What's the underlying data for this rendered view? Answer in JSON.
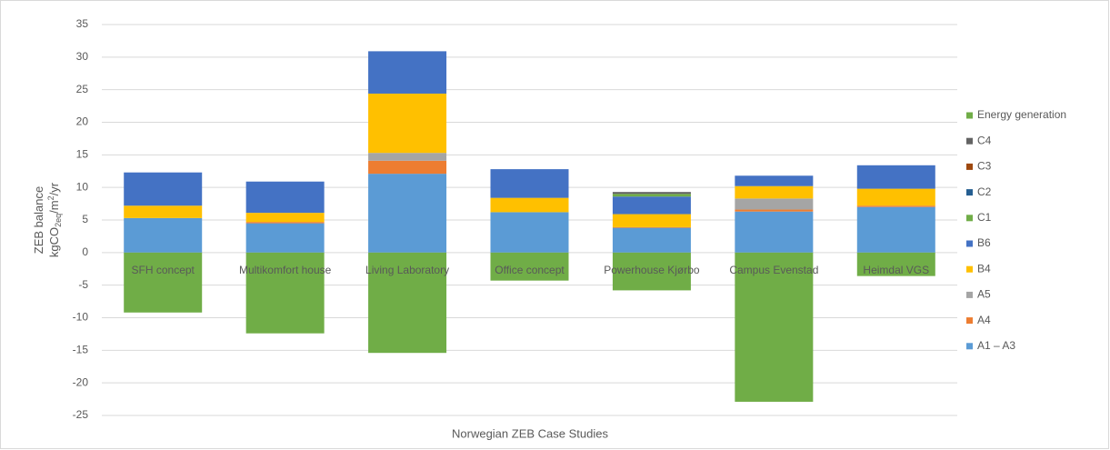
{
  "chart_data": {
    "type": "stacked_bar",
    "x_label": "Norwegian ZEB Case Studies",
    "y_label": [
      "ZEB balance",
      [
        "kgCO",
        "2eq",
        "/m",
        "2",
        "/yr"
      ]
    ],
    "categories": [
      "SFH concept",
      "Multikomfort house",
      "Living Laboratory",
      "Office concept",
      "Powerhouse Kjørbo",
      "Campus Evenstad",
      "Heimdal VGS"
    ],
    "series": [
      {
        "name": "A1 – A3",
        "color": "#5b9bd5",
        "values": [
          5.3,
          4.5,
          12.1,
          6.2,
          3.8,
          6.3,
          7.0
        ]
      },
      {
        "name": "A4",
        "color": "#ed7d31",
        "values": [
          0,
          0.2,
          2.0,
          0,
          0.1,
          0.3,
          0.2
        ]
      },
      {
        "name": "A5",
        "color": "#a5a5a5",
        "values": [
          0,
          0,
          1.2,
          0,
          0,
          1.7,
          0
        ]
      },
      {
        "name": "B4",
        "color": "#ffc000",
        "values": [
          1.9,
          1.4,
          9.1,
          2.2,
          2.0,
          1.9,
          2.6
        ]
      },
      {
        "name": "B6",
        "color": "#4472c4",
        "values": [
          5.1,
          4.8,
          6.5,
          4.4,
          2.7,
          1.6,
          3.6
        ]
      },
      {
        "name": "C1",
        "color": "#70ad47",
        "values": [
          0,
          0,
          0,
          0,
          0.4,
          0,
          0
        ]
      },
      {
        "name": "C2",
        "color": "#255e91",
        "values": [
          0,
          0,
          0,
          0,
          0,
          0,
          0
        ]
      },
      {
        "name": "C3",
        "color": "#9e480e",
        "values": [
          0,
          0,
          0,
          0,
          0,
          0,
          0
        ]
      },
      {
        "name": "C4",
        "color": "#636363",
        "values": [
          0,
          0,
          0,
          0,
          0.3,
          0,
          0
        ]
      },
      {
        "name": "Energy generation",
        "color": "#70ad47",
        "values": [
          -9.2,
          -12.4,
          -15.4,
          -4.3,
          -5.8,
          -22.9,
          -3.6
        ]
      }
    ],
    "ylim": [
      -25,
      35
    ],
    "yticks": [
      -25,
      -20,
      -15,
      -10,
      -5,
      0,
      5,
      10,
      15,
      20,
      25,
      30,
      35
    ],
    "grid": true,
    "legend": "right"
  }
}
